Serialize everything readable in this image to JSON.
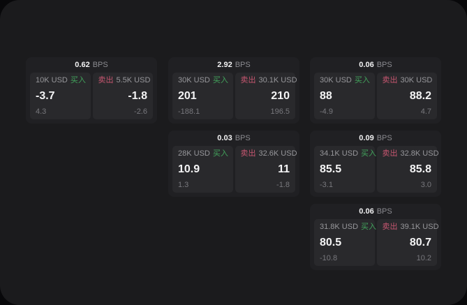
{
  "window": {
    "background": "#08080a",
    "panel_background": "#1b1b1d",
    "card_background": "#202023",
    "tile_background": "#29292c"
  },
  "labels": {
    "unit": "BPS",
    "buy": "买入",
    "sell": "卖出"
  },
  "colors": {
    "buy_green": "#42a35c",
    "sell_pink": "#c65670",
    "primary_text": "#f4f4f5",
    "muted_text": "#97979b",
    "dim_text": "#78787d"
  },
  "cards": [
    {
      "spread_bps": "0.62",
      "buy": {
        "amount": "10K USD",
        "price": "-3.7",
        "change": "4.3"
      },
      "sell": {
        "amount": "5.5K USD",
        "price": "-1.8",
        "change": "-2.6"
      }
    },
    {
      "spread_bps": "2.92",
      "buy": {
        "amount": "30K USD",
        "price": "201",
        "change": "-188.1"
      },
      "sell": {
        "amount": "30.1K USD",
        "price": "210",
        "change": "196.5"
      }
    },
    {
      "spread_bps": "0.06",
      "buy": {
        "amount": "30K USD",
        "price": "88",
        "change": "-4.9"
      },
      "sell": {
        "amount": "30K USD",
        "price": "88.2",
        "change": "4.7"
      }
    },
    {
      "spread_bps": "0.03",
      "buy": {
        "amount": "28K USD",
        "price": "10.9",
        "change": "1.3"
      },
      "sell": {
        "amount": "32.6K USD",
        "price": "11",
        "change": "-1.8"
      }
    },
    {
      "spread_bps": "0.09",
      "buy": {
        "amount": "34.1K USD",
        "price": "85.5",
        "change": "-3.1"
      },
      "sell": {
        "amount": "32.8K USD",
        "price": "85.8",
        "change": "3.0"
      }
    },
    {
      "spread_bps": "0.06",
      "buy": {
        "amount": "31.8K USD",
        "price": "80.5",
        "change": "-10.8"
      },
      "sell": {
        "amount": "39.1K USD",
        "price": "80.7",
        "change": "10.2"
      }
    }
  ]
}
